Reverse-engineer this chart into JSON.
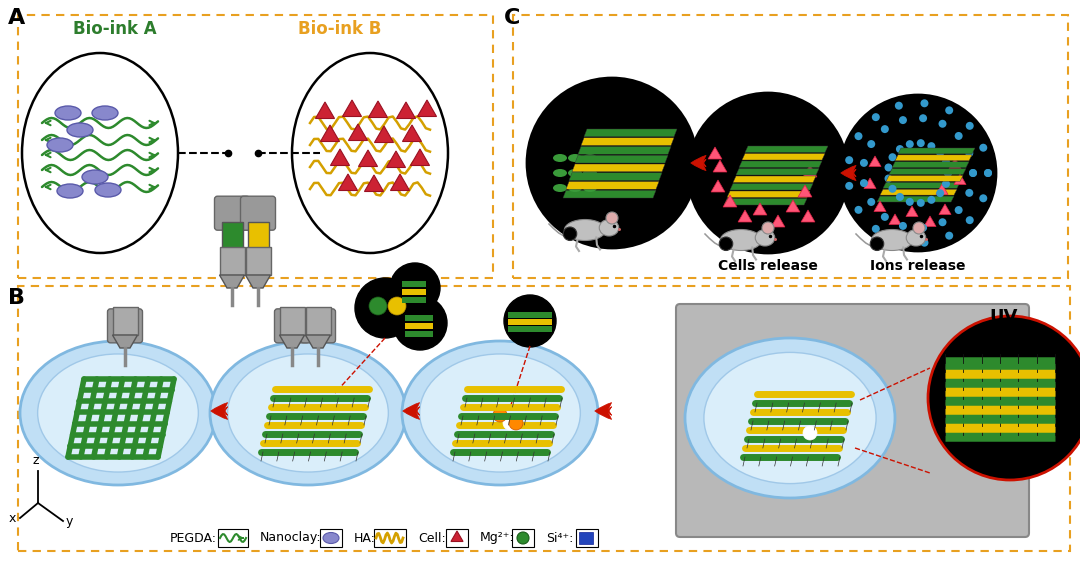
{
  "bg_color": "#ffffff",
  "border_color": "#e8a020",
  "label_A": "A",
  "label_B": "B",
  "label_C": "C",
  "bio_ink_A_color": "#2d7d2d",
  "bio_ink_B_color": "#e8a020",
  "bio_ink_A_label": "Bio-ink A",
  "bio_ink_B_label": "Bio-ink B",
  "green_color": "#2d8a2d",
  "yellow_color": "#e8c000",
  "dark_green": "#1a6b1a",
  "arrow_red": "#cc1100",
  "cells_release": "Cells release",
  "ions_release": "Ions release",
  "uv_label": "UV",
  "gray_box": "#b8b8b8",
  "light_blue": "#c8e4f8",
  "lighter_blue": "#dff0fc",
  "syringe_gray": "#aaaaaa",
  "syringe_dark": "#777777",
  "nanoclay_color": "#7a7acc",
  "cell_color": "#cc2233",
  "ha_color": "#d4a000",
  "mg_color": "#2d8a2d",
  "si_color": "#2244bb"
}
